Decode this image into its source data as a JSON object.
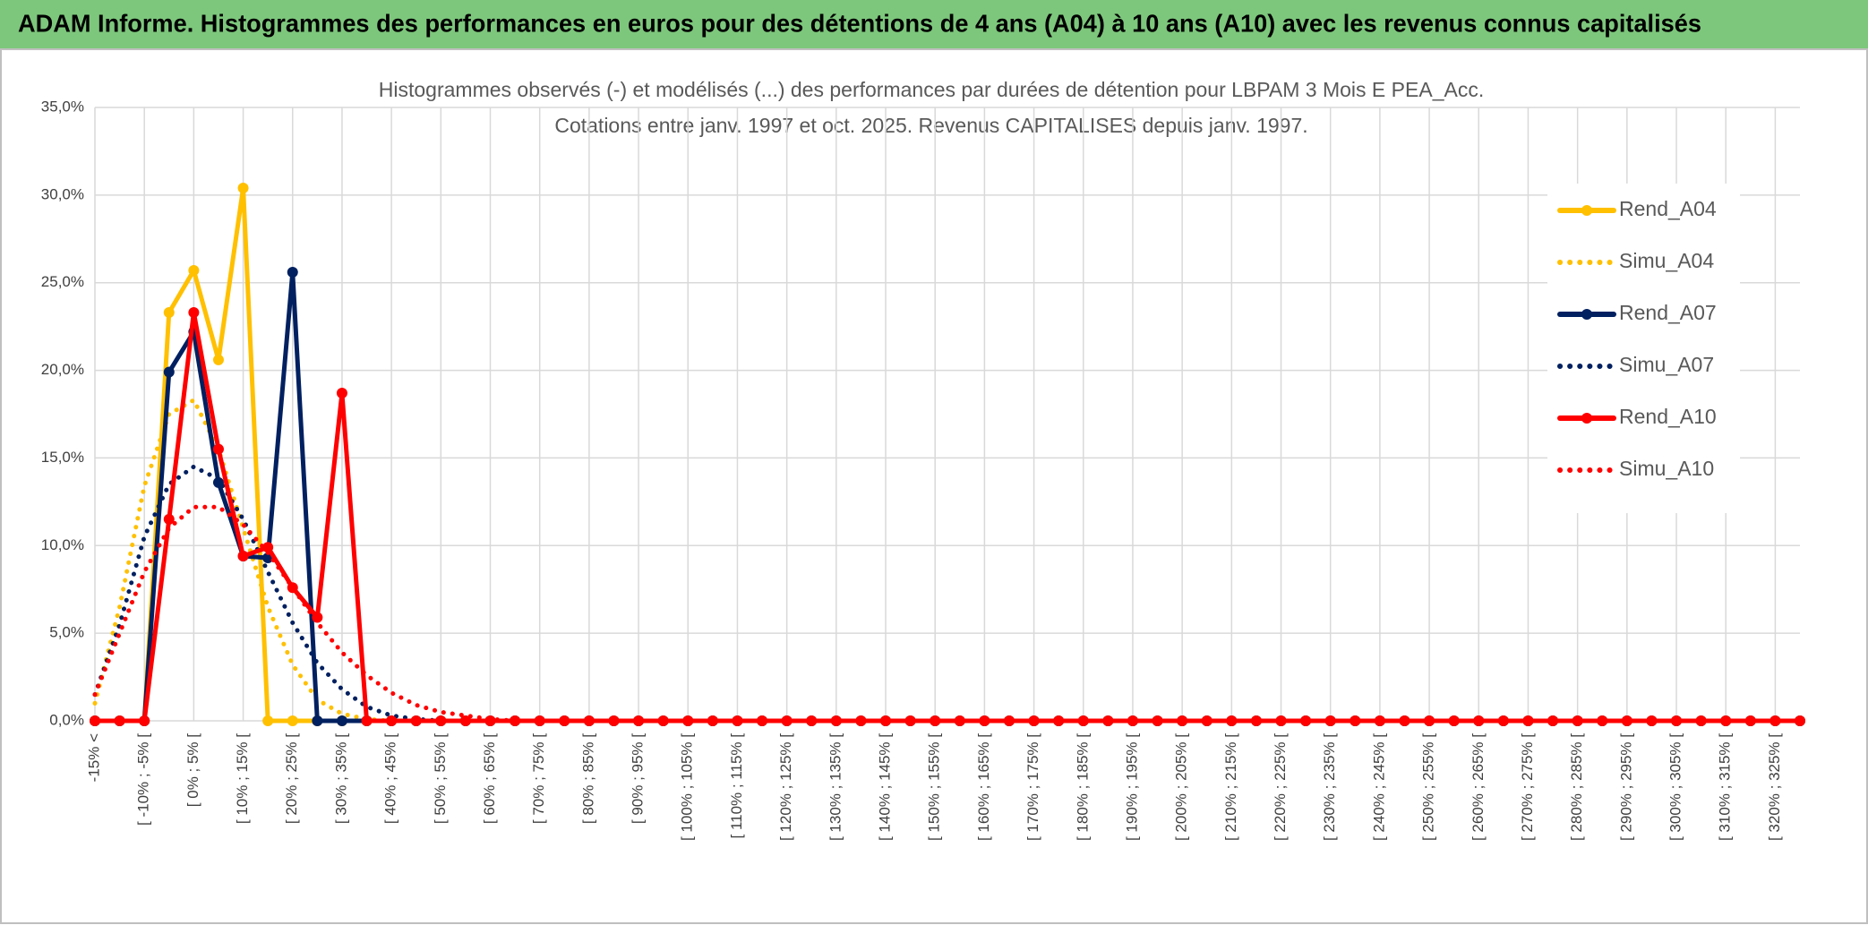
{
  "chart_data": {
    "type": "line",
    "title": "ADAM Informe. Histogrammes des performances en euros pour des détentions de 4 ans (A04) à 10 ans (A10) avec les revenus connus capitalisés",
    "subtitle": [
      "Histogrammes observés (-) et modélisés (...) des performances par durées de détention pour LBPAM 3 Mois E PEA_Acc.",
      "Cotations entre janv. 1997 et oct. 2025. Revenus CAPITALISES depuis janv. 1997."
    ],
    "categories": [
      "-15% <",
      null,
      "[ -10% ; -5% [",
      null,
      "[ 0% ; 5% [",
      null,
      "[ 10% ; 15% [",
      null,
      "[ 20% ; 25% [",
      null,
      "[ 30% ; 35% [",
      null,
      "[ 40% ; 45% [",
      null,
      "[ 50% ; 55% [",
      null,
      "[ 60% ; 65% [",
      null,
      "[ 70% ; 75% [",
      null,
      "[ 80% ; 85% [",
      null,
      "[ 90% ; 95% [",
      null,
      "[ 100% ; 105% [",
      null,
      "[ 110% ; 115% [",
      null,
      "[ 120% ; 125% [",
      null,
      "[ 130% ; 135% [",
      null,
      "[ 140% ; 145% [",
      null,
      "[ 150% ; 155% [",
      null,
      "[ 160% ; 165% [",
      null,
      "[ 170% ; 175% [",
      null,
      "[ 180% ; 185% [",
      null,
      "[ 190% ; 195% [",
      null,
      "[ 200% ; 205% [",
      null,
      "[ 210% ; 215% [",
      null,
      "[ 220% ; 225% [",
      null,
      "[ 230% ; 235% [",
      null,
      "[ 240% ; 245% [",
      null,
      "[ 250% ; 255% [",
      null,
      "[ 260% ; 265% [",
      null,
      "[ 270% ; 275% [",
      null,
      "[ 280% ; 285% [",
      null,
      "[ 290% ; 295% [",
      null,
      "[ 300% ; 305% [",
      null,
      "[ 310% ; 315% [",
      null,
      "[ 320% ; 325% [",
      null
    ],
    "series": [
      {
        "name": "Rend_A04",
        "color": "#FFC000",
        "style": "solid",
        "markers": true,
        "values": [
          0,
          0,
          0,
          23.3,
          25.7,
          20.6,
          30.4,
          0,
          0,
          0,
          0,
          0,
          0,
          0,
          0,
          0,
          0,
          0,
          0,
          0,
          0,
          0,
          0,
          0,
          0,
          0,
          0,
          0,
          0,
          0,
          0,
          0,
          0,
          0,
          0,
          0,
          0,
          0,
          0,
          0,
          0,
          0,
          0,
          0,
          0,
          0,
          0,
          0,
          0,
          0,
          0,
          0,
          0,
          0,
          0,
          0,
          0,
          0,
          0,
          0,
          0,
          0,
          0,
          0,
          0,
          0,
          0,
          0,
          0,
          0
        ]
      },
      {
        "name": "Simu_A04",
        "color": "#FFC000",
        "style": "dotted",
        "markers": false,
        "values": [
          1.0,
          6.5,
          13.4,
          17.5,
          18.3,
          15.5,
          11.0,
          6.5,
          3.2,
          1.2,
          0.4,
          0.1,
          0,
          0,
          0,
          0,
          0,
          0,
          0,
          0,
          0,
          0,
          0,
          0,
          0,
          0,
          0,
          0,
          0,
          0,
          0,
          0,
          0,
          0,
          0,
          0,
          0,
          0,
          0,
          0,
          0,
          0,
          0,
          0,
          0,
          0,
          0,
          0,
          0,
          0,
          0,
          0,
          0,
          0,
          0,
          0,
          0,
          0,
          0,
          0,
          0,
          0,
          0,
          0,
          0,
          0,
          0,
          0,
          0,
          0
        ]
      },
      {
        "name": "Rend_A07",
        "color": "#002060",
        "style": "solid",
        "markers": true,
        "values": [
          0,
          0,
          0,
          19.9,
          22.2,
          13.6,
          9.4,
          9.3,
          25.6,
          0,
          0,
          0,
          0,
          0,
          0,
          0,
          0,
          0,
          0,
          0,
          0,
          0,
          0,
          0,
          0,
          0,
          0,
          0,
          0,
          0,
          0,
          0,
          0,
          0,
          0,
          0,
          0,
          0,
          0,
          0,
          0,
          0,
          0,
          0,
          0,
          0,
          0,
          0,
          0,
          0,
          0,
          0,
          0,
          0,
          0,
          0,
          0,
          0,
          0,
          0,
          0,
          0,
          0,
          0,
          0,
          0,
          0,
          0,
          0,
          0
        ]
      },
      {
        "name": "Simu_A07",
        "color": "#002060",
        "style": "dotted",
        "markers": false,
        "values": [
          1.5,
          5.5,
          10.5,
          13.5,
          14.5,
          13.8,
          11.5,
          8.5,
          5.6,
          3.3,
          1.8,
          0.8,
          0.3,
          0.1,
          0,
          0,
          0,
          0,
          0,
          0,
          0,
          0,
          0,
          0,
          0,
          0,
          0,
          0,
          0,
          0,
          0,
          0,
          0,
          0,
          0,
          0,
          0,
          0,
          0,
          0,
          0,
          0,
          0,
          0,
          0,
          0,
          0,
          0,
          0,
          0,
          0,
          0,
          0,
          0,
          0,
          0,
          0,
          0,
          0,
          0,
          0,
          0,
          0,
          0,
          0,
          0,
          0,
          0,
          0,
          0
        ]
      },
      {
        "name": "Rend_A10",
        "color": "#FF0000",
        "style": "solid",
        "markers": true,
        "values": [
          0,
          0,
          0,
          11.5,
          23.3,
          15.5,
          9.4,
          9.9,
          7.6,
          5.9,
          18.7,
          0,
          0,
          0,
          0,
          0,
          0,
          0,
          0,
          0,
          0,
          0,
          0,
          0,
          0,
          0,
          0,
          0,
          0,
          0,
          0,
          0,
          0,
          0,
          0,
          0,
          0,
          0,
          0,
          0,
          0,
          0,
          0,
          0,
          0,
          0,
          0,
          0,
          0,
          0,
          0,
          0,
          0,
          0,
          0,
          0,
          0,
          0,
          0,
          0,
          0,
          0,
          0,
          0,
          0,
          0,
          0,
          0,
          0,
          0
        ]
      },
      {
        "name": "Simu_A10",
        "color": "#FF0000",
        "style": "dotted",
        "markers": false,
        "values": [
          1.5,
          5.0,
          8.5,
          11.0,
          12.2,
          12.2,
          11.2,
          9.6,
          7.6,
          5.6,
          3.9,
          2.6,
          1.6,
          0.9,
          0.5,
          0.3,
          0.1,
          0,
          0,
          0,
          0,
          0,
          0,
          0,
          0,
          0,
          0,
          0,
          0,
          0,
          0,
          0,
          0,
          0,
          0,
          0,
          0,
          0,
          0,
          0,
          0,
          0,
          0,
          0,
          0,
          0,
          0,
          0,
          0,
          0,
          0,
          0,
          0,
          0,
          0,
          0,
          0,
          0,
          0,
          0,
          0,
          0,
          0,
          0,
          0,
          0,
          0,
          0,
          0,
          0
        ]
      }
    ],
    "ylim": [
      0,
      35
    ],
    "yticks": [
      {
        "value": 0,
        "label": "0,0%"
      },
      {
        "value": 5,
        "label": "5,0%"
      },
      {
        "value": 10,
        "label": "10,0%"
      },
      {
        "value": 15,
        "label": "15,0%"
      },
      {
        "value": 20,
        "label": "20,0%"
      },
      {
        "value": 25,
        "label": "25,0%"
      },
      {
        "value": 30,
        "label": "30,0%"
      },
      {
        "value": 35,
        "label": "35,0%"
      }
    ],
    "grid": true,
    "legend": "right"
  }
}
